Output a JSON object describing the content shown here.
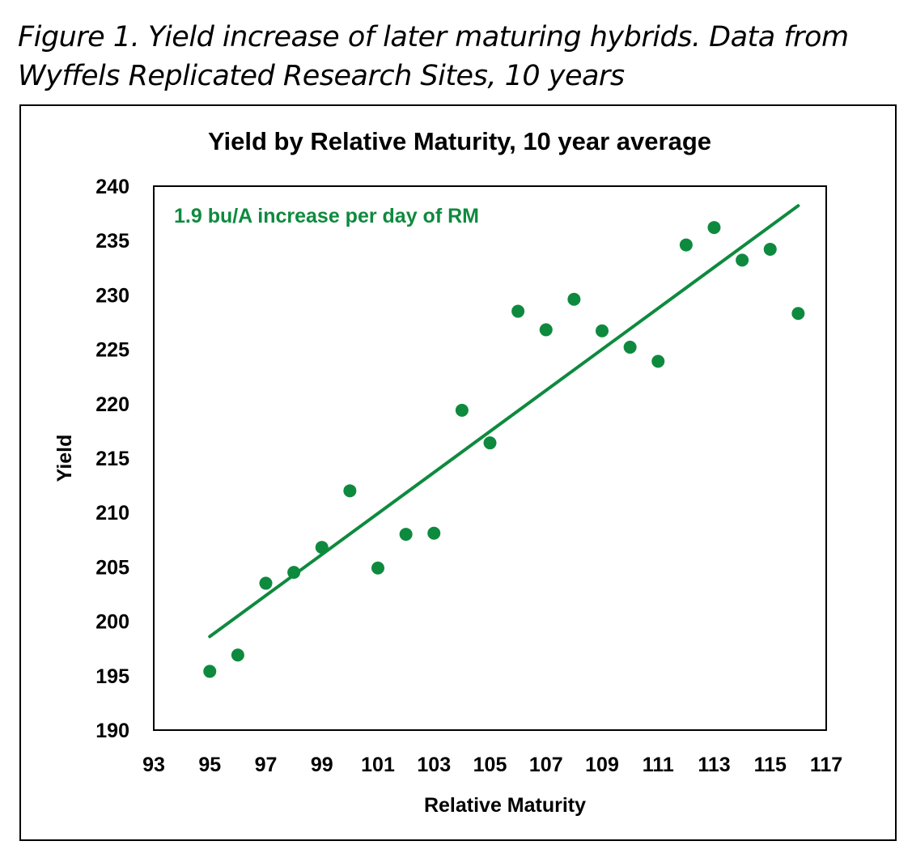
{
  "figure": {
    "caption_line1": "Figure 1. Yield increase of later maturing hybrids. Data from",
    "caption_line2": "Wyffels Replicated Research Sites, 10 years"
  },
  "colors": {
    "series": "#0e8a3e",
    "axis": "#000000"
  },
  "chart_data": {
    "type": "scatter",
    "title": "Yield by Relative Maturity, 10 year average",
    "xlabel": "Relative Maturity",
    "ylabel": "Yield",
    "xlim": [
      93,
      117
    ],
    "ylim": [
      190,
      240
    ],
    "x_ticks": [
      93,
      95,
      97,
      99,
      101,
      103,
      105,
      107,
      109,
      111,
      113,
      115,
      117
    ],
    "y_ticks": [
      190,
      195,
      200,
      205,
      210,
      215,
      220,
      225,
      230,
      235,
      240
    ],
    "grid": false,
    "annotation": "1.9 bu/A increase per day of RM",
    "series": [
      {
        "x": [
          95,
          96,
          97,
          98,
          99,
          100,
          101,
          102,
          103,
          104,
          105,
          106,
          107,
          108,
          109,
          110,
          111,
          112,
          113,
          114,
          115,
          116
        ],
        "y": [
          195.4,
          196.9,
          203.5,
          204.5,
          206.8,
          212.0,
          204.9,
          208.0,
          208.1,
          219.4,
          216.4,
          228.5,
          226.8,
          229.6,
          226.7,
          225.2,
          223.9,
          234.6,
          236.2,
          233.2,
          234.2,
          228.3
        ]
      }
    ],
    "trendline": {
      "x": [
        95,
        116
      ],
      "y": [
        198.6,
        238.2
      ]
    }
  }
}
